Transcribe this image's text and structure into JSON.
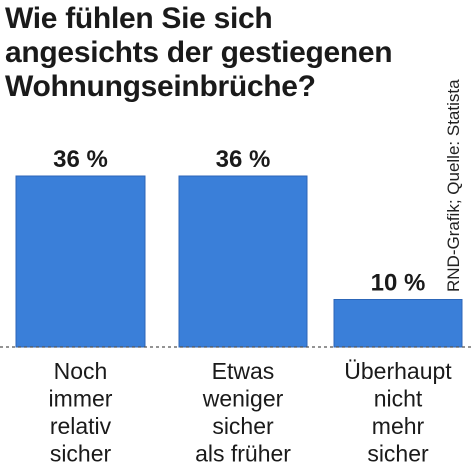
{
  "title_lines": [
    "Wie fühlen Sie sich",
    "angesichts der gestiegenen",
    "Wohnungseinbrüche?"
  ],
  "source": "RND-Grafik; Quelle: Statista",
  "colors": {
    "bar": "#3a7fd9",
    "bar_edge": "#2c66b8",
    "baseline": "#555555",
    "text": "#1a1a1a"
  },
  "chart_data": {
    "type": "bar",
    "title": "Wie fühlen Sie sich angesichts der gestiegenen Wohnungseinbrüche?",
    "categories": [
      [
        "Noch",
        "immer",
        "relativ",
        "sicher"
      ],
      [
        "Etwas",
        "weniger",
        "sicher",
        "als früher"
      ],
      [
        "Überhaupt",
        "nicht",
        "mehr",
        "sicher"
      ]
    ],
    "values": [
      36,
      36,
      10
    ],
    "value_labels": [
      "36 %",
      "36 %",
      "10 %"
    ],
    "unit": "%",
    "ylim": [
      0,
      36
    ],
    "grid": false,
    "legend": "none",
    "baseline": "dashed"
  }
}
